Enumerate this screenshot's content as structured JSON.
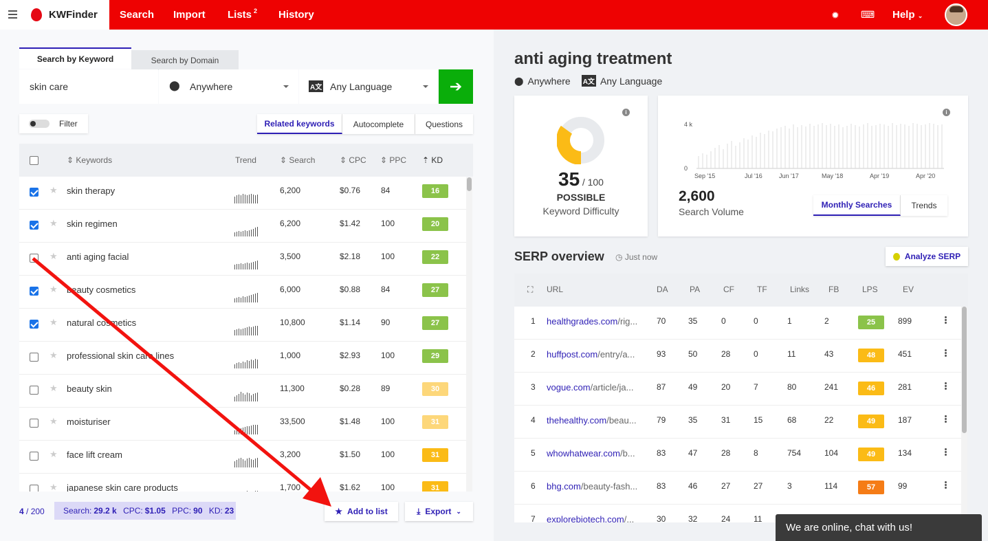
{
  "brand": {
    "name": "KWFinder"
  },
  "nav": {
    "search": "Search",
    "import": "Import",
    "lists": "Lists",
    "lists_count": "2",
    "history": "History",
    "help": "Help"
  },
  "icons": {
    "menu": "hamburger-icon",
    "settings": "gear-icon",
    "keyboard": "keyboard-icon"
  },
  "search_tabs": {
    "by_keyword": "Search by Keyword",
    "by_domain": "Search by Domain"
  },
  "search": {
    "keyword": "skin care",
    "location": "Anywhere",
    "language": "Any Language"
  },
  "filter_label": "Filter",
  "kw_tabs": {
    "related": "Related keywords",
    "autocomplete": "Autocomplete",
    "questions": "Questions"
  },
  "columns": {
    "keywords": "Keywords",
    "trend": "Trend",
    "search": "Search",
    "cpc": "CPC",
    "ppc": "PPC",
    "kd": "KD"
  },
  "keywords": [
    {
      "kw": "skin therapy",
      "search": "6,200",
      "cpc": "$0.76",
      "ppc": "84",
      "kd": "16",
      "checked": true,
      "color": "#8bc34a"
    },
    {
      "kw": "skin regimen",
      "search": "6,200",
      "cpc": "$1.42",
      "ppc": "100",
      "kd": "20",
      "checked": true,
      "color": "#8bc34a"
    },
    {
      "kw": "anti aging facial",
      "search": "3,500",
      "cpc": "$2.18",
      "ppc": "100",
      "kd": "22",
      "checked": false,
      "color": "#8bc34a"
    },
    {
      "kw": "beauty cosmetics",
      "search": "6,000",
      "cpc": "$0.88",
      "ppc": "84",
      "kd": "27",
      "checked": true,
      "color": "#8bc34a"
    },
    {
      "kw": "natural cosmetics",
      "search": "10,800",
      "cpc": "$1.14",
      "ppc": "90",
      "kd": "27",
      "checked": true,
      "color": "#8bc34a"
    },
    {
      "kw": "professional skin care lines",
      "search": "1,000",
      "cpc": "$2.93",
      "ppc": "100",
      "kd": "29",
      "checked": false,
      "color": "#8bc34a"
    },
    {
      "kw": "beauty skin",
      "search": "11,300",
      "cpc": "$0.28",
      "ppc": "89",
      "kd": "30",
      "checked": false,
      "color": "#fdd77a"
    },
    {
      "kw": "moisturiser",
      "search": "33,500",
      "cpc": "$1.48",
      "ppc": "100",
      "kd": "31",
      "checked": false,
      "color": "#fdd77a"
    },
    {
      "kw": "face lift cream",
      "search": "3,200",
      "cpc": "$1.50",
      "ppc": "100",
      "kd": "31",
      "checked": false,
      "color": "#fbbb16"
    },
    {
      "kw": "japanese skin care products",
      "search": "1,700",
      "cpc": "$1.62",
      "ppc": "100",
      "kd": "31",
      "checked": false,
      "color": "#fbbb16"
    }
  ],
  "footer": {
    "selected": "4",
    "total": "/ 200",
    "search_label": "Search:",
    "search_val": "29.2 k",
    "cpc_label": "CPC:",
    "cpc_val": "$1.05",
    "ppc_label": "PPC:",
    "ppc_val": "90",
    "kd_label": "KD:",
    "kd_val": "23",
    "add_to_list": "Add to list",
    "export": "Export"
  },
  "detail": {
    "title": "anti aging treatment",
    "location": "Anywhere",
    "language": "Any Language"
  },
  "difficulty": {
    "value": "35",
    "max": "/ 100",
    "fraction": 0.35,
    "level": "POSSIBLE",
    "label": "Keyword Difficulty"
  },
  "volume": {
    "value": "2,600",
    "label": "Search Volume",
    "y_max": "4 k",
    "y_min": "0",
    "ticks": [
      "Sep '15",
      "Jul '16",
      "Jun '17",
      "May '18",
      "Apr '19",
      "Apr '20"
    ],
    "tab_monthly": "Monthly Searches",
    "tab_trends": "Trends"
  },
  "serp": {
    "title": "SERP overview",
    "time": "Just now",
    "analyze": "Analyze SERP"
  },
  "serp_columns": {
    "url": "URL",
    "da": "DA",
    "pa": "PA",
    "cf": "CF",
    "tf": "TF",
    "links": "Links",
    "fb": "FB",
    "lps": "LPS",
    "ev": "EV"
  },
  "serp_rows": [
    {
      "n": "1",
      "domain": "healthgrades.com",
      "path": "/rig...",
      "da": "70",
      "pa": "35",
      "cf": "0",
      "tf": "0",
      "links": "1",
      "fb": "2",
      "lps": "25",
      "ev": "899",
      "color": "#8bc34a"
    },
    {
      "n": "2",
      "domain": "huffpost.com",
      "path": "/entry/a...",
      "da": "93",
      "pa": "50",
      "cf": "28",
      "tf": "0",
      "links": "11",
      "fb": "43",
      "lps": "48",
      "ev": "451",
      "color": "#fbbb16"
    },
    {
      "n": "3",
      "domain": "vogue.com",
      "path": "/article/ja...",
      "da": "87",
      "pa": "49",
      "cf": "20",
      "tf": "7",
      "links": "80",
      "fb": "241",
      "lps": "46",
      "ev": "281",
      "color": "#fbbb16"
    },
    {
      "n": "4",
      "domain": "thehealthy.com",
      "path": "/beau...",
      "da": "79",
      "pa": "35",
      "cf": "31",
      "tf": "15",
      "links": "68",
      "fb": "22",
      "lps": "49",
      "ev": "187",
      "color": "#fbbb16"
    },
    {
      "n": "5",
      "domain": "whowhatwear.com",
      "path": "/b...",
      "da": "83",
      "pa": "47",
      "cf": "28",
      "tf": "8",
      "links": "754",
      "fb": "104",
      "lps": "49",
      "ev": "134",
      "color": "#fbbb16"
    },
    {
      "n": "6",
      "domain": "bhg.com",
      "path": "/beauty-fash...",
      "da": "83",
      "pa": "46",
      "cf": "27",
      "tf": "27",
      "links": "3",
      "fb": "114",
      "lps": "57",
      "ev": "99",
      "color": "#f57c16"
    },
    {
      "n": "7",
      "domain": "explorebiotech.com",
      "path": "/...",
      "da": "30",
      "pa": "32",
      "cf": "24",
      "tf": "11",
      "links": "",
      "fb": "",
      "lps": "",
      "ev": "",
      "color": "#fbbb16"
    }
  ],
  "chat": "We are online, chat with us!"
}
